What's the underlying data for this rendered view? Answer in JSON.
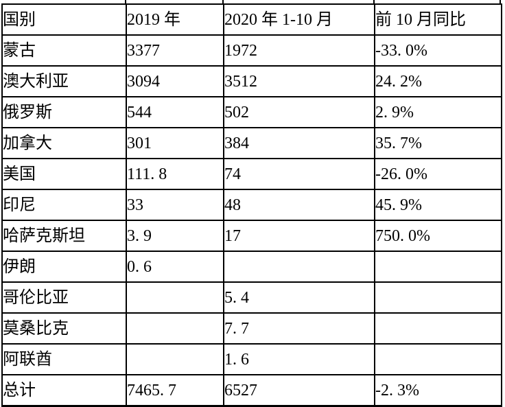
{
  "table": {
    "title": "coal-import-by-country-table",
    "columns": [
      {
        "label": "国别"
      },
      {
        "label": "2019 年"
      },
      {
        "label": "2020 年 1-10 月"
      },
      {
        "label": "前 10 月同比"
      }
    ],
    "rows": [
      {
        "country": "蒙古",
        "y2019": "3377",
        "y2020": "1972",
        "yoy": "-33. 0%"
      },
      {
        "country": "澳大利亚",
        "y2019": "3094",
        "y2020": "3512",
        "yoy": "24. 2%"
      },
      {
        "country": "俄罗斯",
        "y2019": "544",
        "y2020": "502",
        "yoy": "2. 9%"
      },
      {
        "country": "加拿大",
        "y2019": "301",
        "y2020": "384",
        "yoy": "35. 7%"
      },
      {
        "country": "美国",
        "y2019": "111. 8",
        "y2020": "74",
        "yoy": "-26. 0%"
      },
      {
        "country": "印尼",
        "y2019": "33",
        "y2020": "48",
        "yoy": "45. 9%"
      },
      {
        "country": "哈萨克斯坦",
        "y2019": "3. 9",
        "y2020": "17",
        "yoy": "750. 0%"
      },
      {
        "country": "伊朗",
        "y2019": "0. 6",
        "y2020": "",
        "yoy": ""
      },
      {
        "country": "哥伦比亚",
        "y2019": "",
        "y2020": "5. 4",
        "yoy": ""
      },
      {
        "country": "莫桑比克",
        "y2019": "",
        "y2020": "7. 7",
        "yoy": ""
      },
      {
        "country": "阿联酋",
        "y2019": "",
        "y2020": "1. 6",
        "yoy": ""
      },
      {
        "country": "总计",
        "y2019": "7465. 7",
        "y2020": "6527",
        "yoy": "-2. 3%"
      }
    ]
  },
  "colors": {
    "border": "#000000",
    "text": "#000000",
    "background": "#ffffff"
  }
}
